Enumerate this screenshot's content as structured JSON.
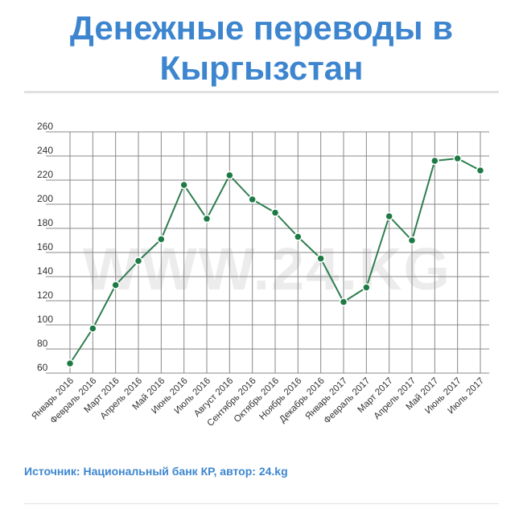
{
  "title": "Денежные переводы в Кыргызстан",
  "watermark": "WWW.24.KG",
  "source": "Источник: Национальный банк КР, автор: 24.kg",
  "colors": {
    "title": "#3d86cf",
    "line": "#2e7d4f",
    "marker": "#1e7a45",
    "grid": "#888888"
  },
  "chart_data": {
    "type": "line",
    "title": "Денежные переводы в Кыргызстан",
    "xlabel": "",
    "ylabel": "",
    "ylim": [
      60,
      260
    ],
    "yticks": [
      60,
      80,
      100,
      120,
      140,
      160,
      180,
      200,
      220,
      240,
      260
    ],
    "grid": true,
    "legend": "none",
    "categories": [
      "Январь 2016",
      "Февраль 2016",
      "Март 2016",
      "Апрель 2016",
      "Май 2016",
      "Июнь 2016",
      "Июль 2016",
      "Август 2016",
      "Сентябрь 2016",
      "Октябрь 2016",
      "Ноябрь 2016",
      "Декабрь 2016",
      "Январь 2017",
      "Февраль 2017",
      "Март 2017",
      "Апрель 2017",
      "Май 2017",
      "Июнь 2017",
      "Июль 2017"
    ],
    "series": [
      {
        "values": [
          68,
          97,
          133,
          153,
          171,
          216,
          188,
          224,
          204,
          193,
          173,
          155,
          119,
          131,
          190,
          170,
          236,
          238,
          228
        ]
      }
    ]
  }
}
